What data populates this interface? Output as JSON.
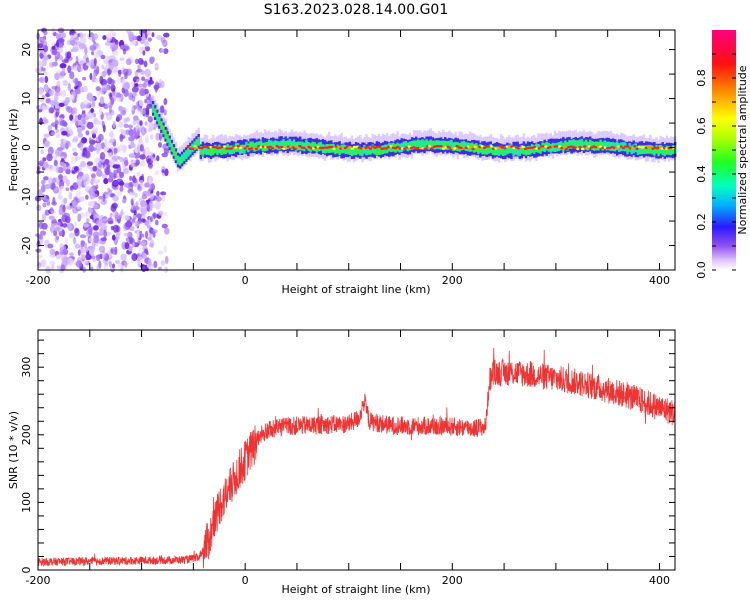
{
  "title": "S163.2023.028.14.00.G01",
  "chart_data": [
    {
      "type": "heatmap",
      "xlabel": "Height of straight line (km)",
      "ylabel": "Frequency (Hz)",
      "xlim": [
        -200,
        415
      ],
      "ylim": [
        -25,
        24
      ],
      "xticks": [
        "-200",
        "0",
        "200",
        "400"
      ],
      "yticks": [
        "-20",
        "-10",
        "0",
        "10",
        "20"
      ],
      "colorbar": {
        "label": "Normalized spectral amplitude",
        "range": [
          0,
          1
        ],
        "ticks": [
          "0.0",
          "0.2",
          "0.4",
          "0.6",
          "0.8"
        ]
      },
      "features": {
        "noise_region_x": [
          -200,
          -75
        ],
        "transition_x": [
          -90,
          -65
        ],
        "transition_freq_hz": [
          8,
          -3
        ],
        "stable_freq_hz": 0
      },
      "grid": false
    },
    {
      "type": "line",
      "xlabel": "Height of straight line (km)",
      "ylabel": "SNR (10 * v/v)",
      "xlim": [
        -200,
        415
      ],
      "ylim": [
        0,
        355
      ],
      "xticks": [
        "-200",
        "0",
        "200",
        "400"
      ],
      "yticks": [
        "0",
        "100",
        "200",
        "300"
      ],
      "color": "#ee3333",
      "series": [
        {
          "x": [
            -200,
            -150,
            -100,
            -60,
            -45,
            -35,
            -25,
            -15,
            -5,
            5,
            15,
            25,
            35,
            45,
            60,
            80,
            100,
            110,
            115,
            120,
            140,
            160,
            180,
            200,
            220,
            232,
            236,
            240,
            260,
            280,
            300,
            320,
            340,
            360,
            380,
            400,
            415
          ],
          "values": [
            12,
            13,
            14,
            15,
            18,
            45,
            95,
            120,
            150,
            175,
            200,
            208,
            212,
            213,
            214,
            215,
            216,
            225,
            250,
            220,
            214,
            213,
            213,
            212,
            210,
            212,
            280,
            292,
            292,
            288,
            283,
            278,
            270,
            262,
            252,
            240,
            232
          ]
        }
      ],
      "grid": false
    }
  ]
}
